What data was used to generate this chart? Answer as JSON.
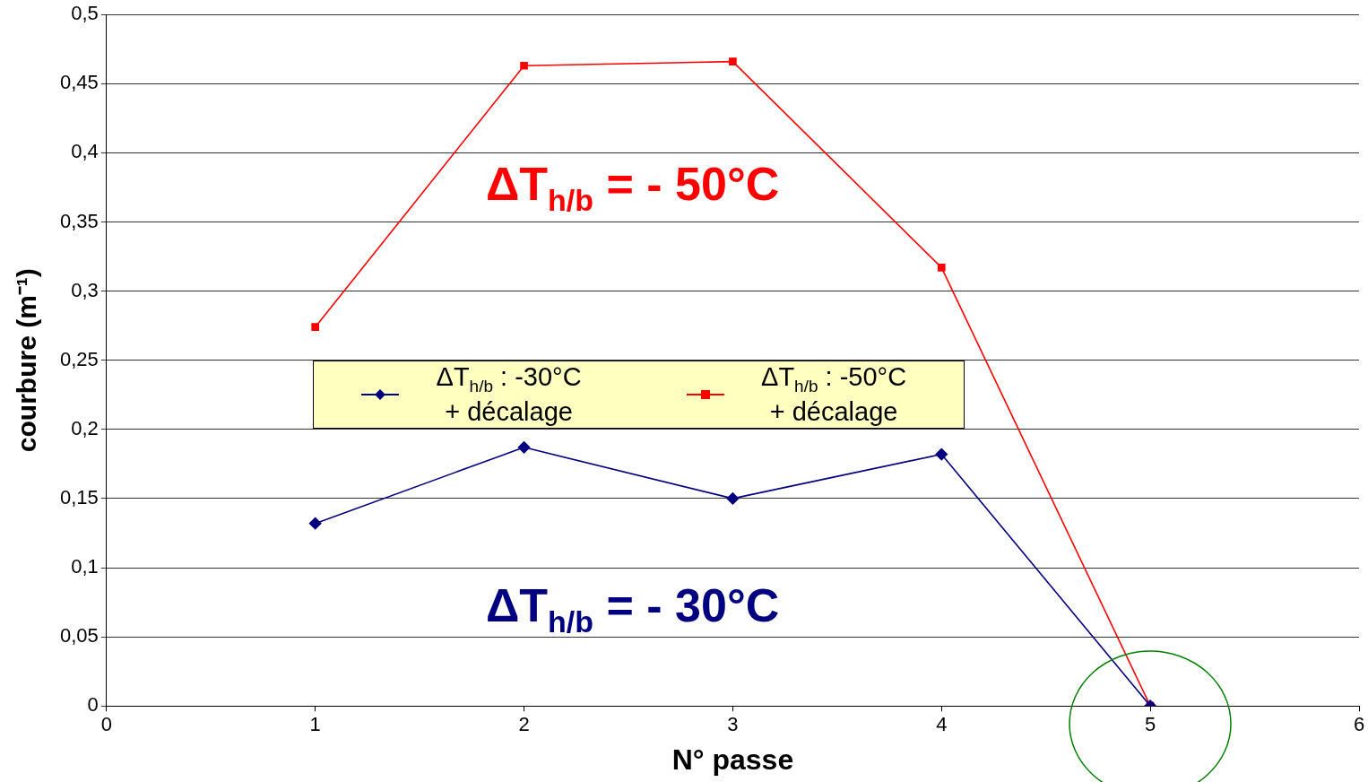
{
  "chart_data": {
    "type": "line",
    "xlabel": "N° passe",
    "ylabel": "courbure (m⁻¹)",
    "x": [
      1,
      2,
      3,
      4,
      5
    ],
    "series": [
      {
        "name": "ΔT$_{h/b}$ : -30°C + décalage",
        "color": "#000080",
        "marker": "diamond",
        "values": [
          0.132,
          0.187,
          0.15,
          0.182,
          0
        ]
      },
      {
        "name": "ΔT$_{h/b}$ : -50°C + décalage",
        "color": "#ff0000",
        "marker": "square",
        "values": [
          0.274,
          0.463,
          0.466,
          0.317,
          0
        ]
      }
    ],
    "xlim": [
      0,
      6
    ],
    "xticks": [
      0,
      1,
      2,
      3,
      4,
      5,
      6
    ],
    "ylim": [
      0,
      0.5
    ],
    "yticks": [
      {
        "value": 0,
        "label": "0"
      },
      {
        "value": 0.05,
        "label": "0,05"
      },
      {
        "value": 0.1,
        "label": "0,1"
      },
      {
        "value": 0.15,
        "label": "0,15"
      },
      {
        "value": 0.2,
        "label": "0,2"
      },
      {
        "value": 0.25,
        "label": "0,25"
      },
      {
        "value": 0.3,
        "label": "0,3"
      },
      {
        "value": 0.35,
        "label": "0,35"
      },
      {
        "value": 0.4,
        "label": "0,4"
      },
      {
        "value": 0.45,
        "label": "0,45"
      },
      {
        "value": 0.5,
        "label": "0,5"
      }
    ],
    "annotations": [
      "ΔT$_{h/b}$ = - 30°C",
      "ΔT$_{h/b}$ = - 50°C"
    ],
    "grid": "y",
    "legend": "center",
    "line_style": "solid"
  }
}
